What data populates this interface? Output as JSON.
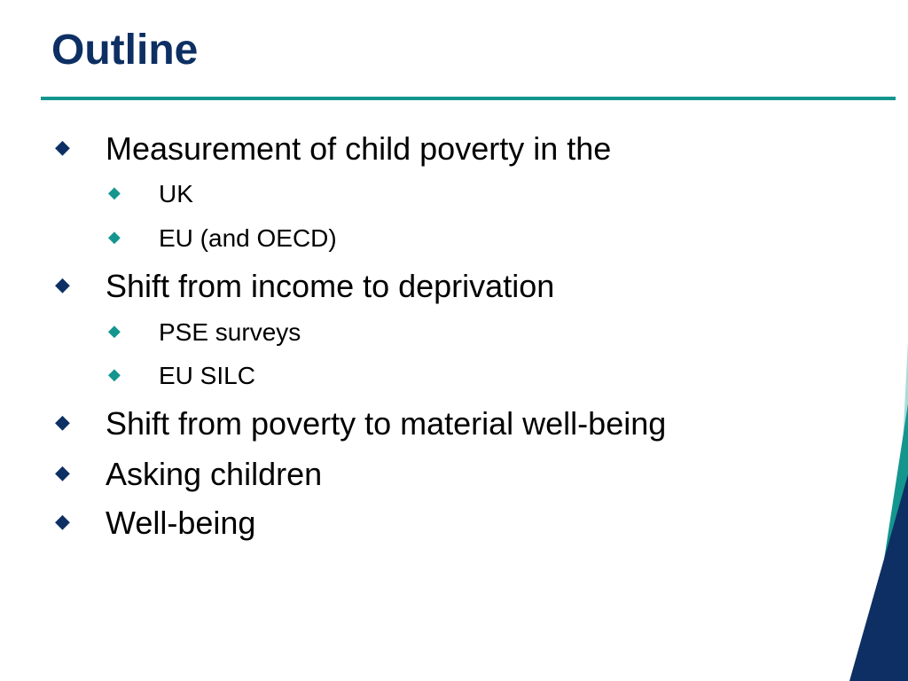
{
  "slide": {
    "title": "Outline",
    "bullets": [
      {
        "text": "Measurement of child poverty in the",
        "children": [
          {
            "text": "UK"
          },
          {
            "text": "EU (and OECD)"
          }
        ]
      },
      {
        "text": "Shift from income to deprivation",
        "children": [
          {
            "text": "PSE surveys"
          },
          {
            "text": "EU SILC"
          }
        ]
      },
      {
        "text": "Shift from poverty to material well-being"
      },
      {
        "text": "Asking children"
      },
      {
        "text": "Well-being"
      }
    ]
  },
  "icons": {
    "level1_bullet": "diamond-icon",
    "level2_bullet": "diamond-icon"
  },
  "colors": {
    "title": "#0d2f63",
    "rule": "#14968e",
    "level1_bullet": "#0d2f63",
    "level2_bullet": "#14968e",
    "body_text": "#000000",
    "deco_navy": "#0d2f63",
    "deco_teal": "#14968e",
    "deco_light_teal": "#a9dcd8"
  }
}
